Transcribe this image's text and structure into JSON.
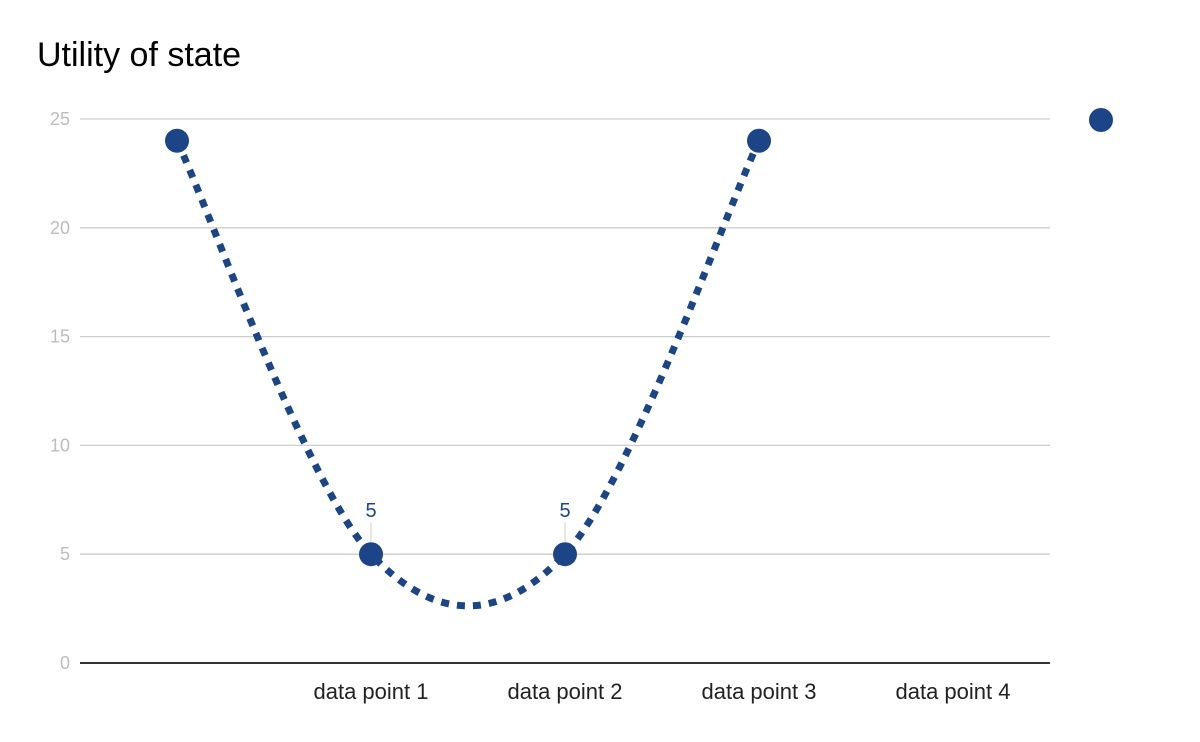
{
  "chart_data": {
    "type": "line",
    "title": "Utility of state",
    "xlabel": "",
    "ylabel": "",
    "categories": [
      "",
      "data point 1",
      "data point 2",
      "data point 3",
      "data point 4"
    ],
    "series": [
      {
        "values": [
          24,
          5,
          5,
          24,
          null
        ],
        "line_style": "dotted",
        "smoothed": true
      }
    ],
    "data_labels": [
      {
        "category": "data point 1",
        "text": "5"
      },
      {
        "category": "data point 2",
        "text": "5"
      }
    ],
    "yticks": [
      "0",
      "5",
      "10",
      "15",
      "20",
      "25"
    ],
    "ylim": [
      0,
      25
    ],
    "grid": true,
    "legend": "right",
    "colors": {
      "series": "#1c4587",
      "grid": "#cccccc",
      "axis": "#333333"
    }
  }
}
